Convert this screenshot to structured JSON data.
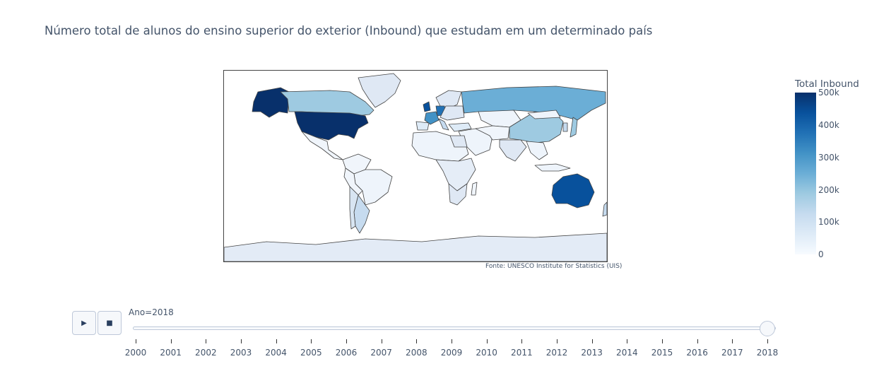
{
  "title": "Número total de alunos do ensino superior do exterior (Inbound) que estudam em um determinado país",
  "source": "Fonte:  UNESCO Institute for Statistics (UIS)",
  "colorbar": {
    "title": "Total Inbound",
    "ticks": [
      "500k",
      "400k",
      "300k",
      "200k",
      "100k",
      "0"
    ],
    "colors": [
      "#08306b",
      "#08519c",
      "#2171b5",
      "#4292c6",
      "#6baed6",
      "#9ecae1",
      "#c6dbef",
      "#deebf7",
      "#f7fbff"
    ]
  },
  "slider": {
    "current_label": "Ano=2018",
    "years": [
      "2000",
      "2001",
      "2002",
      "2003",
      "2004",
      "2005",
      "2006",
      "2007",
      "2008",
      "2009",
      "2010",
      "2011",
      "2012",
      "2013",
      "2014",
      "2015",
      "2016",
      "2017",
      "2018"
    ],
    "play_icon": "play-icon",
    "stop_icon": "stop-icon"
  },
  "chart_data": {
    "type": "choropleth",
    "title": "Número total de alunos do ensino superior do exterior (Inbound) que estudam em um determinado país",
    "colorbar_title": "Total Inbound",
    "color_range": [
      0,
      500000
    ],
    "year": 2018,
    "values": [
      {
        "country": "United States",
        "value": 987000
      },
      {
        "country": "Australia",
        "value": 445000
      },
      {
        "country": "United Kingdom",
        "value": 452000
      },
      {
        "country": "Russia",
        "value": 262000
      },
      {
        "country": "Canada",
        "value": 224000
      },
      {
        "country": "France",
        "value": 230000
      },
      {
        "country": "Germany",
        "value": 312000
      },
      {
        "country": "China",
        "value": 178000
      },
      {
        "country": "Japan",
        "value": 182000
      },
      {
        "country": "Argentina",
        "value": 117000
      },
      {
        "country": "Brazil",
        "value": 20000
      },
      {
        "country": "India",
        "value": 47000
      },
      {
        "country": "Egypt",
        "value": 53000
      },
      {
        "country": "South Africa",
        "value": 44000
      },
      {
        "country": "Greenland",
        "value": 0
      },
      {
        "country": "Antarctica",
        "value": 0
      }
    ]
  }
}
